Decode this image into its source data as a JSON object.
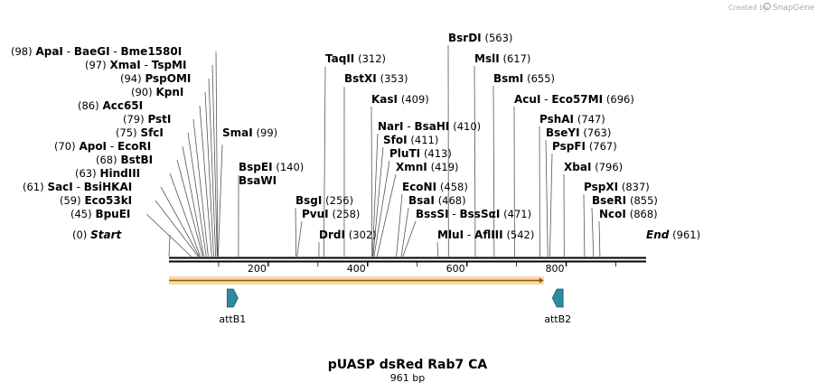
{
  "credit": {
    "prefix": "Created by",
    "brand": "SnapGene"
  },
  "map": {
    "length_bp": 961,
    "title": "pUASP dsRed Rab7 CA",
    "subtitle": "961 bp",
    "ticks": [
      "200",
      "400",
      "600",
      "800"
    ],
    "feature_arrow": {
      "start": 0,
      "end": 755,
      "color": "#f5c060"
    },
    "att_sites": [
      {
        "name": "attB1",
        "pos": 128,
        "direction": "right",
        "color": "#2e8aa0"
      },
      {
        "name": "attB2",
        "pos": 783,
        "direction": "left",
        "color": "#2e8aa0"
      }
    ]
  },
  "labels": {
    "left": [
      {
        "pos_text": "(98)",
        "names": [
          "ApaI",
          "BaeGI",
          "Bme1580I"
        ],
        "site": 98
      },
      {
        "pos_text": "(97)",
        "names": [
          "XmaI",
          "TspMI"
        ],
        "site": 97
      },
      {
        "pos_text": "(94)",
        "names": [
          "PspOMI"
        ],
        "site": 94
      },
      {
        "pos_text": "(90)",
        "names": [
          "KpnI"
        ],
        "site": 90
      },
      {
        "pos_text": "(86)",
        "names": [
          "Acc65I"
        ],
        "site": 86
      },
      {
        "pos_text": "(79)",
        "names": [
          "PstI"
        ],
        "site": 79
      },
      {
        "pos_text": "(75)",
        "names": [
          "SfcI"
        ],
        "site": 75
      },
      {
        "pos_text": "(70)",
        "names": [
          "ApoI",
          "EcoRI"
        ],
        "site": 70
      },
      {
        "pos_text": "(68)",
        "names": [
          "BstBI"
        ],
        "site": 68
      },
      {
        "pos_text": "(63)",
        "names": [
          "HindIII"
        ],
        "site": 63
      },
      {
        "pos_text": "(61)",
        "names": [
          "SacI",
          "BsiHKAI"
        ],
        "site": 61
      },
      {
        "pos_text": "(59)",
        "names": [
          "Eco53kI"
        ],
        "site": 59
      },
      {
        "pos_text": "(45)",
        "names": [
          "BpuEI"
        ],
        "site": 45
      },
      {
        "pos_text": "(0)",
        "names": [
          "Start"
        ],
        "site": 0,
        "italic": true
      }
    ],
    "right": [
      {
        "names": [
          "SmaI"
        ],
        "pos_text": "(99)",
        "site": 99
      },
      {
        "names": [
          "BspEI"
        ],
        "pos_text": "(140)",
        "site": 140
      },
      {
        "names": [
          "BsaWI"
        ],
        "pos_text": "",
        "site": 140
      },
      {
        "names": [
          "TaqII"
        ],
        "pos_text": "(312)",
        "site": 312
      },
      {
        "names": [
          "BstXI"
        ],
        "pos_text": "(353)",
        "site": 353
      },
      {
        "names": [
          "KasI"
        ],
        "pos_text": "(409)",
        "site": 409
      },
      {
        "names": [
          "NarI",
          "BsaHI"
        ],
        "pos_text": "(410)",
        "site": 410
      },
      {
        "names": [
          "SfoI"
        ],
        "pos_text": "(411)",
        "site": 411
      },
      {
        "names": [
          "PluTI"
        ],
        "pos_text": "(413)",
        "site": 413
      },
      {
        "names": [
          "XmnI"
        ],
        "pos_text": "(419)",
        "site": 419
      },
      {
        "names": [
          "EcoNI"
        ],
        "pos_text": "(458)",
        "site": 458
      },
      {
        "names": [
          "BsaI"
        ],
        "pos_text": "(468)",
        "site": 468
      },
      {
        "names": [
          "BssSI",
          "BssSαI"
        ],
        "pos_text": "(471)",
        "site": 471
      },
      {
        "names": [
          "BsgI"
        ],
        "pos_text": "(256)",
        "site": 256
      },
      {
        "names": [
          "PvuI"
        ],
        "pos_text": "(258)",
        "site": 258
      },
      {
        "names": [
          "DrdI"
        ],
        "pos_text": "(302)",
        "site": 302
      },
      {
        "names": [
          "BsrDI"
        ],
        "pos_text": "(563)",
        "site": 563
      },
      {
        "names": [
          "MslI"
        ],
        "pos_text": "(617)",
        "site": 617
      },
      {
        "names": [
          "BsmI"
        ],
        "pos_text": "(655)",
        "site": 655
      },
      {
        "names": [
          "AcuI",
          "Eco57MI"
        ],
        "pos_text": "(696)",
        "site": 696
      },
      {
        "names": [
          "MluI",
          "AflIII"
        ],
        "pos_text": "(542)",
        "site": 542
      },
      {
        "names": [
          "PshAI"
        ],
        "pos_text": "(747)",
        "site": 747
      },
      {
        "names": [
          "BseYI"
        ],
        "pos_text": "(763)",
        "site": 763
      },
      {
        "names": [
          "PspFI"
        ],
        "pos_text": "(767)",
        "site": 767
      },
      {
        "names": [
          "XbaI"
        ],
        "pos_text": "(796)",
        "site": 796
      },
      {
        "names": [
          "PspXI"
        ],
        "pos_text": "(837)",
        "site": 837
      },
      {
        "names": [
          "BseRI"
        ],
        "pos_text": "(855)",
        "site": 855
      },
      {
        "names": [
          "NcoI"
        ],
        "pos_text": "(868)",
        "site": 868
      },
      {
        "names": [
          "End"
        ],
        "pos_text": "(961)",
        "site": 961,
        "italic": true
      }
    ]
  }
}
